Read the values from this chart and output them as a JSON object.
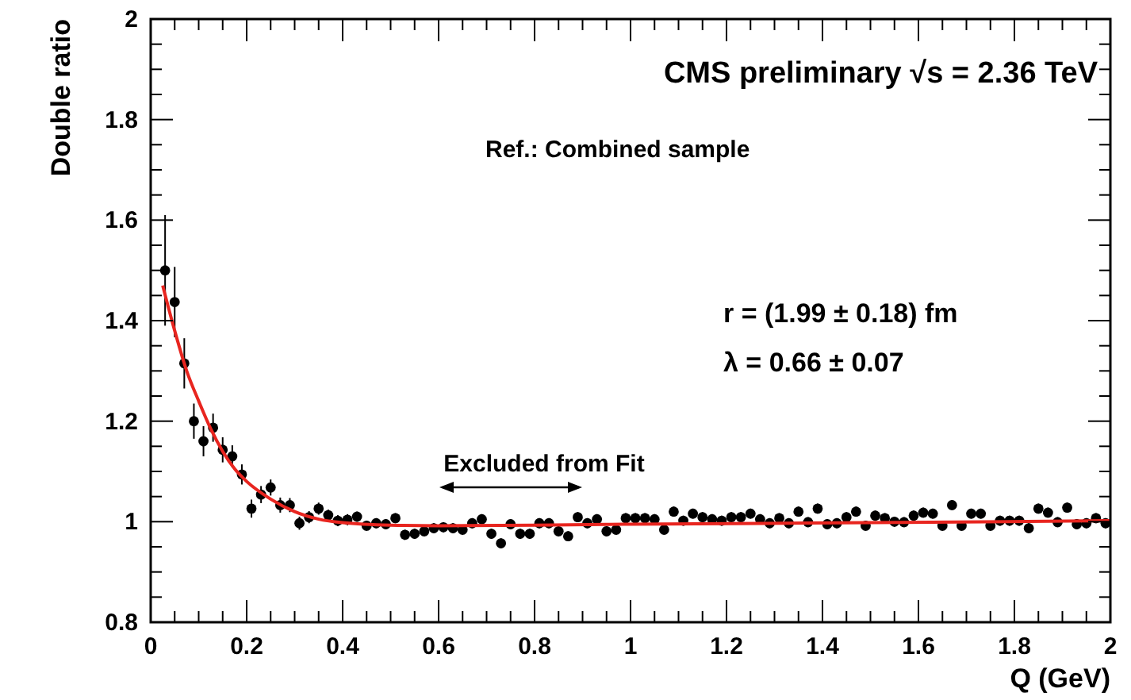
{
  "chart_data": {
    "type": "scatter",
    "xlabel": "Q (GeV)",
    "ylabel": "Double ratio",
    "annotations": [
      "CMS preliminary √s = 2.36 TeV",
      "Ref.: Combined sample",
      "r = (1.99 ± 0.18) fm",
      "λ = 0.66 ± 0.07",
      "Excluded from Fit"
    ],
    "xlim": [
      0,
      2
    ],
    "ylim": [
      0.8,
      2
    ],
    "xticks": [
      0,
      {
        "value": 0.05,
        "label": null
      },
      {
        "value": 0.1,
        "label": null
      },
      {
        "value": 0.15,
        "label": null
      },
      0.2,
      {
        "value": 0.25,
        "label": null
      },
      {
        "value": 0.3,
        "label": null
      },
      {
        "value": 0.35,
        "label": null
      },
      0.4,
      {
        "value": 0.45,
        "label": null
      },
      {
        "value": 0.5,
        "label": null
      },
      {
        "value": 0.55,
        "label": null
      },
      0.6,
      {
        "value": 0.65,
        "label": null
      },
      {
        "value": 0.7,
        "label": null
      },
      {
        "value": 0.75,
        "label": null
      },
      0.8,
      {
        "value": 0.85,
        "label": null
      },
      {
        "value": 0.9,
        "label": null
      },
      {
        "value": 0.95,
        "label": null
      },
      1,
      {
        "value": 1.05,
        "label": null
      },
      {
        "value": 1.1,
        "label": null
      },
      {
        "value": 1.15,
        "label": null
      },
      1.2,
      {
        "value": 1.25,
        "label": null
      },
      {
        "value": 1.3,
        "label": null
      },
      {
        "value": 1.35,
        "label": null
      },
      1.4,
      {
        "value": 1.45,
        "label": null
      },
      {
        "value": 1.5,
        "label": null
      },
      {
        "value": 1.55,
        "label": null
      },
      1.6,
      {
        "value": 1.65,
        "label": null
      },
      {
        "value": 1.7,
        "label": null
      },
      {
        "value": 1.75,
        "label": null
      },
      1.8,
      {
        "value": 1.85,
        "label": null
      },
      {
        "value": 1.9,
        "label": null
      },
      {
        "value": 1.95,
        "label": null
      },
      2
    ],
    "yticks": [
      0.8,
      {
        "value": 0.85,
        "label": null
      },
      {
        "value": 0.9,
        "label": null
      },
      {
        "value": 0.95,
        "label": null
      },
      1,
      {
        "value": 1.05,
        "label": null
      },
      {
        "value": 1.1,
        "label": null
      },
      {
        "value": 1.15,
        "label": null
      },
      1.2,
      {
        "value": 1.25,
        "label": null
      },
      {
        "value": 1.3,
        "label": null
      },
      {
        "value": 1.35,
        "label": null
      },
      1.4,
      {
        "value": 1.45,
        "label": null
      },
      {
        "value": 1.5,
        "label": null
      },
      {
        "value": 1.55,
        "label": null
      },
      1.6,
      {
        "value": 1.65,
        "label": null
      },
      {
        "value": 1.7,
        "label": null
      },
      {
        "value": 1.75,
        "label": null
      },
      1.8,
      {
        "value": 1.85,
        "label": null
      },
      {
        "value": 1.9,
        "label": null
      },
      {
        "value": 1.95,
        "label": null
      },
      2
    ],
    "marker": "circle",
    "series": [
      {
        "color": "#000000",
        "x": [
          0.03,
          0.05,
          0.07,
          0.09,
          0.11,
          0.13,
          0.15,
          0.17,
          0.19,
          0.21,
          0.23,
          0.25,
          0.27,
          0.29,
          0.31,
          0.33,
          0.35,
          0.37,
          0.39,
          0.41,
          0.43,
          0.45,
          0.47,
          0.49,
          0.51,
          0.53,
          0.55,
          0.57,
          0.59,
          0.61,
          0.63,
          0.65,
          0.67,
          0.69,
          0.71,
          0.73,
          0.75,
          0.77,
          0.79,
          0.81,
          0.83,
          0.85,
          0.87,
          0.89,
          0.91,
          0.93,
          0.95,
          0.97,
          0.99,
          1.01,
          1.03,
          1.05,
          1.07,
          1.09,
          1.11,
          1.13,
          1.15,
          1.17,
          1.19,
          1.21,
          1.23,
          1.25,
          1.27,
          1.29,
          1.31,
          1.33,
          1.35,
          1.37,
          1.39,
          1.41,
          1.43,
          1.45,
          1.47,
          1.49,
          1.51,
          1.53,
          1.55,
          1.57,
          1.59,
          1.61,
          1.63,
          1.65,
          1.67,
          1.69,
          1.71,
          1.73,
          1.75,
          1.77,
          1.79,
          1.81,
          1.83,
          1.85,
          1.87,
          1.89,
          1.91,
          1.93,
          1.95,
          1.97,
          1.99
        ],
        "values": [
          1.5,
          1.437,
          1.315,
          1.2,
          1.16,
          1.187,
          1.143,
          1.13,
          1.094,
          1.026,
          1.054,
          1.068,
          1.033,
          1.033,
          0.997,
          1.009,
          1.026,
          1.013,
          1.002,
          1.004,
          1.01,
          0.992,
          0.997,
          0.995,
          1.007,
          0.974,
          0.976,
          0.981,
          0.987,
          0.989,
          0.987,
          0.984,
          0.997,
          1.005,
          0.976,
          0.957,
          0.995,
          0.976,
          0.976,
          0.997,
          0.997,
          0.981,
          0.971,
          1.009,
          0.997,
          1.005,
          0.981,
          0.984,
          1.007,
          1.007,
          1.007,
          1.005,
          0.984,
          1.02,
          1.002,
          1.016,
          1.009,
          1.005,
          1.002,
          1.009,
          1.009,
          1.016,
          1.005,
          0.997,
          1.007,
          0.997,
          1.02,
          0.999,
          1.026,
          0.995,
          0.997,
          1.009,
          1.02,
          0.992,
          1.012,
          1.007,
          1,
          0.999,
          1.012,
          1.018,
          1.016,
          0.992,
          1.033,
          0.992,
          1.016,
          1.016,
          0.992,
          1.002,
          1.002,
          1.002,
          0.987,
          1.026,
          1.018,
          0.999,
          1.028,
          0.995,
          0.997,
          1.007,
          0.997
        ],
        "errors": [
          0.11,
          0.07,
          0.05,
          0.035,
          0.03,
          0.028,
          0.025,
          0.022,
          0.02,
          0.018,
          0.017,
          0.016,
          0.015,
          0.014,
          0.013,
          0.012,
          0.012,
          0.011,
          0.011,
          0.011,
          0.01,
          0.01,
          0.01,
          0.01,
          0.01,
          0.01,
          0.01,
          0.01,
          0.01,
          0.01,
          0.01,
          0.01,
          0.01,
          0.01,
          0.01,
          0.01,
          0.01,
          0.01,
          0.01,
          0.01,
          0.01,
          0.01,
          0.01,
          0.01,
          0.01,
          0.01,
          0.01,
          0.01,
          0.01,
          0.01,
          0.01,
          0.01,
          0.01,
          0.01,
          0.01,
          0.01,
          0.01,
          0.01,
          0.01,
          0.01,
          0.01,
          0.01,
          0.01,
          0.01,
          0.01,
          0.01,
          0.01,
          0.01,
          0.01,
          0.01,
          0.01,
          0.01,
          0.01,
          0.01,
          0.01,
          0.01,
          0.01,
          0.01,
          0.01,
          0.01,
          0.01,
          0.01,
          0.01,
          0.01,
          0.01,
          0.01,
          0.01,
          0.01,
          0.01,
          0.01,
          0.01,
          0.01,
          0.01,
          0.01,
          0.01,
          0.01,
          0.01,
          0.01,
          0.01
        ]
      },
      {
        "type": "line",
        "color": "#e8251f",
        "marker": "none",
        "x": [
          0.025,
          0.05,
          0.075,
          0.1,
          0.125,
          0.15,
          0.175,
          0.2,
          0.25,
          0.3,
          0.35,
          0.4,
          0.5,
          0.6,
          0.8,
          1,
          1.5,
          2
        ],
        "values": [
          1.47,
          1.38,
          1.3,
          1.24,
          1.185,
          1.14,
          1.105,
          1.08,
          1.045,
          1.02,
          1.005,
          0.998,
          0.993,
          0.992,
          0.993,
          0.995,
          0.998,
          1.002
        ]
      }
    ]
  }
}
